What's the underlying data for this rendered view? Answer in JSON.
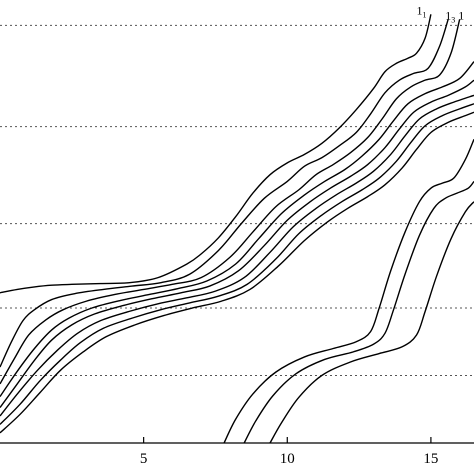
{
  "chart_data": {
    "type": "line",
    "title": "",
    "xlabel": "",
    "ylabel": "",
    "xlim": [
      0,
      16.5
    ],
    "ylim": [
      0,
      5.25
    ],
    "x_ticks": [
      {
        "value": 5,
        "label": "5"
      },
      {
        "value": 10,
        "label": "10"
      },
      {
        "value": 15,
        "label": "15"
      }
    ],
    "y_gridlines": [
      0.8,
      1.6,
      2.6,
      3.75,
      4.95
    ],
    "grid": "horizontal-dashed",
    "legend": "none",
    "line_color": "#000000",
    "annotations": [
      {
        "text": "1",
        "sub": "1",
        "x": 14.5,
        "y": 5.08
      },
      {
        "text": "1",
        "sub": "3",
        "x": 15.5,
        "y": 5.02
      },
      {
        "text": "1",
        "sub": "",
        "x": 15.95,
        "y": 5.02
      }
    ],
    "series": [
      {
        "x": [
          0,
          0.6,
          1.2,
          1.8,
          2.5,
          3.5,
          4.5,
          5.5,
          6.5,
          7.0,
          7.6,
          8.2,
          8.8,
          9.4,
          10.0,
          10.6,
          11.2,
          11.8,
          12.4,
          13.0,
          13.4,
          13.8,
          14.2,
          14.5,
          14.8,
          15.0
        ],
        "y": [
          1.78,
          1.82,
          1.85,
          1.87,
          1.88,
          1.89,
          1.9,
          1.96,
          2.12,
          2.24,
          2.43,
          2.68,
          2.96,
          3.18,
          3.32,
          3.42,
          3.55,
          3.73,
          3.95,
          4.2,
          4.4,
          4.5,
          4.56,
          4.62,
          4.8,
          5.08
        ]
      },
      {
        "x": [
          0,
          0.4,
          0.8,
          1.2,
          1.8,
          2.6,
          3.6,
          4.6,
          5.6,
          6.6,
          7.6,
          8.4,
          9.2,
          10.0,
          10.6,
          11.2,
          11.8,
          12.4,
          12.9,
          13.4,
          13.9,
          14.4,
          14.9,
          15.3,
          15.6
        ],
        "y": [
          0.9,
          1.2,
          1.45,
          1.58,
          1.7,
          1.77,
          1.82,
          1.86,
          1.9,
          2.0,
          2.28,
          2.6,
          2.9,
          3.1,
          3.28,
          3.38,
          3.52,
          3.68,
          3.9,
          4.15,
          4.3,
          4.38,
          4.44,
          4.7,
          5.02
        ]
      },
      {
        "x": [
          0,
          0.5,
          1.0,
          1.6,
          2.2,
          3.0,
          4.0,
          5.0,
          6.0,
          7.0,
          8.0,
          8.8,
          9.6,
          10.4,
          11.0,
          11.6,
          12.2,
          12.8,
          13.3,
          13.8,
          14.3,
          14.8,
          15.3,
          15.7,
          16.0
        ],
        "y": [
          0.7,
          1.0,
          1.28,
          1.46,
          1.58,
          1.68,
          1.76,
          1.82,
          1.88,
          1.96,
          2.2,
          2.5,
          2.8,
          3.0,
          3.18,
          3.3,
          3.44,
          3.62,
          3.84,
          4.08,
          4.22,
          4.3,
          4.36,
          4.62,
          5.02
        ]
      },
      {
        "x": [
          0,
          0.6,
          1.2,
          1.8,
          2.4,
          3.2,
          4.2,
          5.2,
          6.2,
          7.2,
          8.2,
          9.0,
          9.8,
          10.6,
          11.3,
          12.0,
          12.6,
          13.2,
          13.7,
          14.2,
          14.8,
          15.4,
          16.0,
          16.5
        ],
        "y": [
          0.55,
          0.85,
          1.12,
          1.34,
          1.48,
          1.6,
          1.69,
          1.76,
          1.83,
          1.92,
          2.12,
          2.42,
          2.72,
          2.94,
          3.1,
          3.24,
          3.4,
          3.6,
          3.82,
          4.02,
          4.14,
          4.22,
          4.32,
          4.52
        ]
      },
      {
        "x": [
          0,
          0.6,
          1.2,
          1.8,
          2.5,
          3.3,
          4.3,
          5.3,
          6.3,
          7.3,
          8.3,
          9.2,
          10.0,
          10.8,
          11.5,
          12.2,
          12.8,
          13.4,
          13.9,
          14.4,
          15.0,
          15.6,
          16.2,
          16.5
        ],
        "y": [
          0.42,
          0.7,
          0.98,
          1.22,
          1.4,
          1.53,
          1.63,
          1.71,
          1.78,
          1.86,
          2.04,
          2.34,
          2.64,
          2.86,
          3.02,
          3.16,
          3.3,
          3.5,
          3.72,
          3.92,
          4.04,
          4.12,
          4.22,
          4.3
        ]
      },
      {
        "x": [
          0,
          0.6,
          1.3,
          2.0,
          2.7,
          3.5,
          4.5,
          5.5,
          6.5,
          7.5,
          8.5,
          9.4,
          10.2,
          11.0,
          11.7,
          12.4,
          13.0,
          13.6,
          14.1,
          14.6,
          15.2,
          15.8,
          16.5
        ],
        "y": [
          0.32,
          0.58,
          0.86,
          1.1,
          1.3,
          1.45,
          1.56,
          1.65,
          1.72,
          1.8,
          1.96,
          2.26,
          2.56,
          2.78,
          2.94,
          3.08,
          3.22,
          3.42,
          3.64,
          3.84,
          3.96,
          4.04,
          4.12
        ]
      },
      {
        "x": [
          0,
          0.7,
          1.4,
          2.1,
          2.8,
          3.6,
          4.6,
          5.6,
          6.6,
          7.6,
          8.6,
          9.6,
          10.4,
          11.2,
          11.9,
          12.6,
          13.2,
          13.8,
          14.3,
          14.8,
          15.4,
          16.0,
          16.5
        ],
        "y": [
          0.22,
          0.46,
          0.74,
          0.98,
          1.19,
          1.36,
          1.48,
          1.58,
          1.66,
          1.74,
          1.88,
          2.18,
          2.48,
          2.7,
          2.86,
          3.0,
          3.14,
          3.34,
          3.56,
          3.76,
          3.88,
          3.96,
          4.02
        ]
      },
      {
        "x": [
          0,
          0.7,
          1.4,
          2.1,
          2.9,
          3.7,
          4.7,
          5.7,
          6.7,
          7.7,
          8.7,
          9.7,
          10.6,
          11.4,
          12.1,
          12.8,
          13.4,
          14.0,
          14.5,
          15.0,
          15.6,
          16.2,
          16.5
        ],
        "y": [
          0.12,
          0.34,
          0.6,
          0.86,
          1.08,
          1.26,
          1.4,
          1.51,
          1.6,
          1.68,
          1.82,
          2.1,
          2.4,
          2.62,
          2.78,
          2.92,
          3.06,
          3.26,
          3.48,
          3.68,
          3.8,
          3.88,
          3.92
        ]
      },
      {
        "x": [
          7.8,
          8.2,
          8.8,
          9.6,
          10.6,
          11.6,
          12.4,
          12.9,
          13.2,
          13.6,
          14.1,
          14.6,
          15.0,
          15.4,
          15.8,
          16.2,
          16.5
        ],
        "y": [
          0.0,
          0.28,
          0.58,
          0.84,
          1.02,
          1.12,
          1.2,
          1.32,
          1.6,
          2.04,
          2.5,
          2.86,
          3.02,
          3.08,
          3.14,
          3.36,
          3.6
        ]
      },
      {
        "x": [
          8.5,
          8.9,
          9.5,
          10.3,
          11.3,
          12.3,
          13.0,
          13.4,
          13.7,
          14.1,
          14.6,
          15.1,
          15.5,
          15.9,
          16.3,
          16.5
        ],
        "y": [
          0.0,
          0.26,
          0.56,
          0.82,
          0.99,
          1.08,
          1.17,
          1.3,
          1.58,
          2.0,
          2.46,
          2.78,
          2.9,
          2.96,
          3.02,
          3.1
        ]
      },
      {
        "x": [
          9.4,
          9.8,
          10.4,
          11.2,
          12.2,
          13.2,
          14.0,
          14.5,
          14.8,
          15.2,
          15.7,
          16.2,
          16.5
        ],
        "y": [
          0.0,
          0.24,
          0.54,
          0.8,
          0.96,
          1.06,
          1.14,
          1.28,
          1.56,
          1.98,
          2.42,
          2.74,
          2.86
        ]
      }
    ]
  }
}
